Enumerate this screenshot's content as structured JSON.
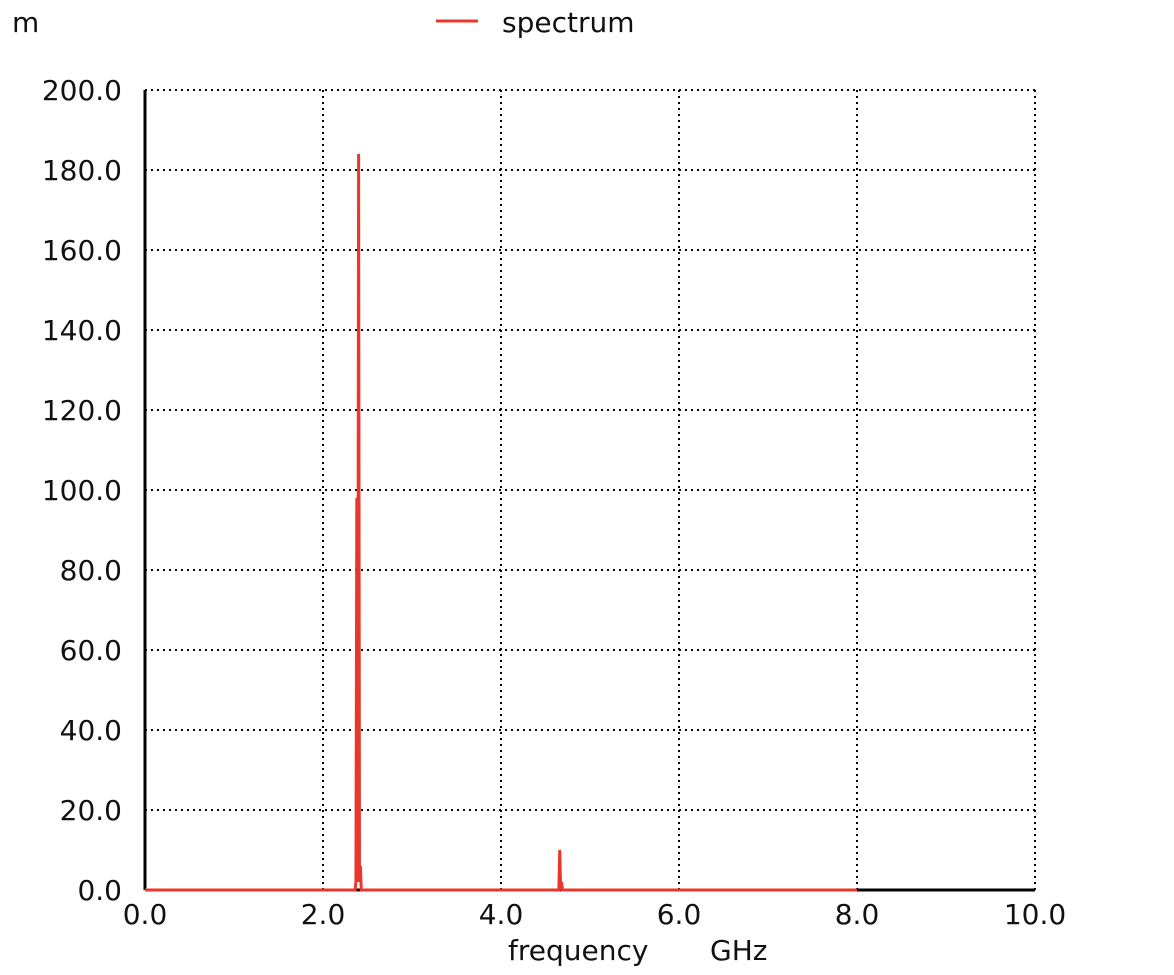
{
  "chart_data": {
    "type": "line",
    "title": "",
    "y_unit_prefix": "m",
    "xlabel": "frequency",
    "xunit": "GHz",
    "xlim": [
      0,
      10
    ],
    "ylim": [
      0,
      200
    ],
    "x_ticks": [
      0,
      2,
      4,
      6,
      8,
      10
    ],
    "x_tick_labels": [
      "0.0",
      "2.0",
      "4.0",
      "6.0",
      "8.0",
      "10.0"
    ],
    "y_ticks": [
      0,
      20,
      40,
      60,
      80,
      100,
      120,
      140,
      160,
      180,
      200
    ],
    "y_tick_labels": [
      "0.0",
      "20.0",
      "40.0",
      "60.0",
      "80.0",
      "100.0",
      "120.0",
      "140.0",
      "160.0",
      "180.0",
      "200.0"
    ],
    "grid": true,
    "legend_position": "top-center",
    "series": [
      {
        "name": "spectrum",
        "color": "#e8372c",
        "x": [
          0.0,
          2.36,
          2.37,
          2.38,
          2.39,
          2.4,
          2.41,
          2.42,
          2.43,
          2.44,
          4.65,
          4.66,
          4.67,
          4.68,
          4.69,
          8.0
        ],
        "y": [
          0.0,
          0.0,
          2.0,
          98.0,
          2.0,
          184.0,
          2.0,
          6.0,
          0.0,
          0.0,
          0.0,
          10.0,
          0.0,
          2.0,
          0.0,
          0.0
        ]
      }
    ]
  }
}
